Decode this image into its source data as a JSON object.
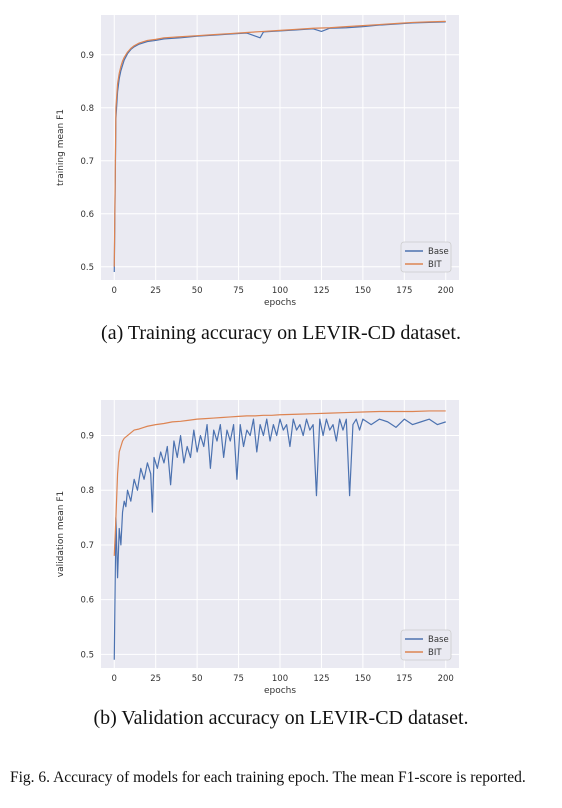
{
  "captions": {
    "a": "(a) Training accuracy on LEVIR-CD dataset.",
    "b": "(b) Validation accuracy on LEVIR-CD dataset.",
    "figure": "Fig. 6.  Accuracy of models for each training epoch. The mean F1-score is reported."
  },
  "colors": {
    "base": "#4c72b0",
    "bit": "#dd8452",
    "plot_bg": "#eaeaf2",
    "grid": "#ffffff"
  },
  "chart_data": [
    {
      "type": "line",
      "title": "",
      "xlabel": "epochs",
      "ylabel": "training mean F1",
      "xlim": [
        -8,
        208
      ],
      "ylim": [
        0.475,
        0.975
      ],
      "xticks": [
        0,
        25,
        50,
        75,
        100,
        125,
        150,
        175,
        200
      ],
      "yticks": [
        0.5,
        0.6,
        0.7,
        0.8,
        0.9
      ],
      "ytick_labels": [
        "0.5",
        "0.6",
        "0.7",
        "0.8",
        "0.9"
      ],
      "grid": true,
      "legend_position": "lower-right",
      "series": [
        {
          "name": "Base",
          "color": "#4c72b0",
          "x": [
            0,
            1,
            2,
            3,
            4,
            5,
            6,
            8,
            10,
            12,
            15,
            20,
            25,
            30,
            40,
            50,
            60,
            70,
            80,
            88,
            90,
            100,
            110,
            120,
            125,
            130,
            140,
            150,
            160,
            170,
            180,
            190,
            200
          ],
          "y": [
            0.49,
            0.78,
            0.83,
            0.855,
            0.87,
            0.88,
            0.89,
            0.902,
            0.91,
            0.915,
            0.92,
            0.925,
            0.927,
            0.93,
            0.932,
            0.935,
            0.937,
            0.939,
            0.941,
            0.932,
            0.943,
            0.945,
            0.947,
            0.949,
            0.944,
            0.95,
            0.951,
            0.953,
            0.956,
            0.958,
            0.96,
            0.961,
            0.962
          ]
        },
        {
          "name": "BIT",
          "color": "#dd8452",
          "x": [
            0,
            1,
            2,
            3,
            4,
            5,
            6,
            8,
            10,
            12,
            15,
            20,
            25,
            30,
            40,
            50,
            60,
            70,
            80,
            90,
            100,
            110,
            120,
            130,
            140,
            150,
            160,
            170,
            180,
            190,
            200
          ],
          "y": [
            0.5,
            0.8,
            0.845,
            0.865,
            0.878,
            0.888,
            0.895,
            0.905,
            0.912,
            0.917,
            0.922,
            0.927,
            0.929,
            0.932,
            0.934,
            0.936,
            0.938,
            0.94,
            0.942,
            0.944,
            0.946,
            0.948,
            0.95,
            0.951,
            0.953,
            0.955,
            0.957,
            0.959,
            0.961,
            0.962,
            0.963
          ]
        }
      ]
    },
    {
      "type": "line",
      "title": "",
      "xlabel": "epochs",
      "ylabel": "validation mean F1",
      "xlim": [
        -8,
        208
      ],
      "ylim": [
        0.475,
        0.965
      ],
      "xticks": [
        0,
        25,
        50,
        75,
        100,
        125,
        150,
        175,
        200
      ],
      "yticks": [
        0.5,
        0.6,
        0.7,
        0.8,
        0.9
      ],
      "ytick_labels": [
        "0.5",
        "0.6",
        "0.7",
        "0.8",
        "0.9"
      ],
      "grid": true,
      "legend_position": "lower-right",
      "series": [
        {
          "name": "Base",
          "color": "#4c72b0",
          "x": [
            0,
            1,
            2,
            3,
            4,
            5,
            6,
            7,
            8,
            10,
            12,
            14,
            16,
            18,
            20,
            22,
            23,
            24,
            26,
            28,
            30,
            32,
            34,
            36,
            38,
            40,
            42,
            44,
            46,
            48,
            50,
            52,
            54,
            56,
            58,
            60,
            62,
            64,
            66,
            68,
            70,
            72,
            74,
            76,
            78,
            80,
            82,
            84,
            86,
            88,
            90,
            92,
            94,
            96,
            98,
            100,
            102,
            104,
            106,
            108,
            110,
            112,
            114,
            116,
            118,
            120,
            122,
            124,
            126,
            128,
            130,
            132,
            134,
            136,
            138,
            140,
            142,
            144,
            146,
            148,
            150,
            155,
            160,
            165,
            170,
            175,
            180,
            185,
            190,
            195,
            200
          ],
          "y": [
            0.49,
            0.75,
            0.64,
            0.73,
            0.7,
            0.76,
            0.78,
            0.77,
            0.8,
            0.78,
            0.82,
            0.8,
            0.84,
            0.82,
            0.85,
            0.83,
            0.76,
            0.86,
            0.84,
            0.87,
            0.85,
            0.88,
            0.81,
            0.89,
            0.86,
            0.9,
            0.85,
            0.88,
            0.86,
            0.91,
            0.87,
            0.9,
            0.88,
            0.92,
            0.84,
            0.91,
            0.89,
            0.92,
            0.86,
            0.91,
            0.89,
            0.92,
            0.82,
            0.92,
            0.88,
            0.91,
            0.9,
            0.93,
            0.87,
            0.92,
            0.9,
            0.93,
            0.89,
            0.92,
            0.9,
            0.93,
            0.91,
            0.92,
            0.88,
            0.93,
            0.91,
            0.92,
            0.9,
            0.93,
            0.91,
            0.92,
            0.79,
            0.93,
            0.9,
            0.93,
            0.91,
            0.92,
            0.89,
            0.93,
            0.91,
            0.93,
            0.79,
            0.92,
            0.93,
            0.91,
            0.93,
            0.92,
            0.93,
            0.925,
            0.915,
            0.93,
            0.92,
            0.925,
            0.93,
            0.92,
            0.925
          ]
        },
        {
          "name": "BIT",
          "color": "#dd8452",
          "x": [
            0,
            1,
            2,
            3,
            4,
            5,
            6,
            8,
            10,
            12,
            15,
            18,
            20,
            25,
            30,
            35,
            40,
            45,
            50,
            55,
            60,
            65,
            70,
            75,
            80,
            85,
            90,
            95,
            100,
            110,
            120,
            130,
            140,
            150,
            160,
            170,
            180,
            190,
            200
          ],
          "y": [
            0.68,
            0.75,
            0.83,
            0.87,
            0.88,
            0.89,
            0.895,
            0.9,
            0.905,
            0.91,
            0.912,
            0.915,
            0.917,
            0.92,
            0.922,
            0.925,
            0.926,
            0.928,
            0.93,
            0.931,
            0.932,
            0.933,
            0.934,
            0.935,
            0.936,
            0.936,
            0.937,
            0.937,
            0.938,
            0.939,
            0.94,
            0.941,
            0.942,
            0.943,
            0.944,
            0.944,
            0.944,
            0.945,
            0.945
          ]
        }
      ]
    }
  ]
}
